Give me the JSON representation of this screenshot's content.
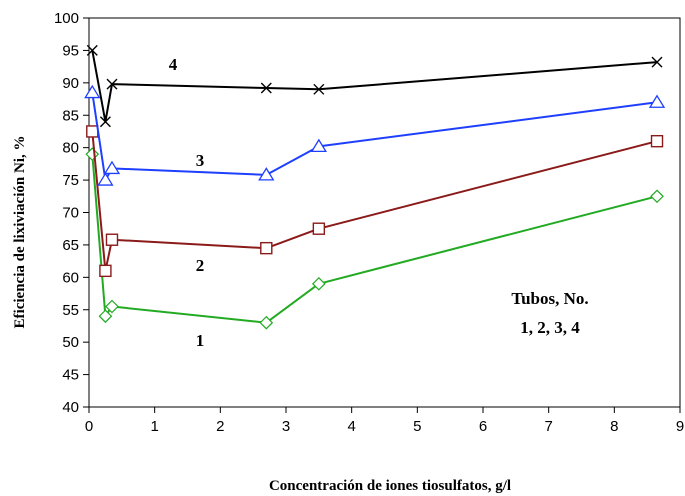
{
  "chart_data": {
    "type": "line",
    "xlabel": "Concentración de iones tiosulfatos, g/l",
    "ylabel": "Eficiencia de lixiviación Ni, %",
    "xlim": [
      0,
      9
    ],
    "ylim": [
      40,
      100
    ],
    "x_ticks": [
      "0",
      "1",
      "2",
      "3",
      "4",
      "5",
      "6",
      "7",
      "8",
      "9"
    ],
    "y_ticks": [
      "40",
      "45",
      "50",
      "55",
      "60",
      "65",
      "70",
      "75",
      "80",
      "85",
      "90",
      "95",
      "100"
    ],
    "grid": false,
    "legend_text": [
      "Tubos, No.",
      "1, 2, 3, 4"
    ],
    "series": [
      {
        "name": "1",
        "color": "#22aa22",
        "marker": "diamond",
        "x": [
          0.05,
          0.25,
          0.35,
          2.7,
          3.5,
          8.65
        ],
        "y": [
          79.0,
          54.0,
          55.5,
          53.0,
          59.0,
          72.5
        ]
      },
      {
        "name": "2",
        "color": "#8b1a1a",
        "marker": "square",
        "x": [
          0.05,
          0.25,
          0.35,
          2.7,
          3.5,
          8.65
        ],
        "y": [
          82.5,
          61.0,
          65.8,
          64.5,
          67.5,
          81.0
        ]
      },
      {
        "name": "3",
        "color": "#1f3fff",
        "marker": "triangle",
        "x": [
          0.05,
          0.25,
          0.35,
          2.7,
          3.5,
          8.65
        ],
        "y": [
          88.5,
          75.0,
          76.8,
          75.8,
          80.2,
          87.0
        ]
      },
      {
        "name": "4",
        "color": "#000000",
        "marker": "x",
        "x": [
          0.05,
          0.25,
          0.35,
          2.7,
          3.5,
          8.65
        ],
        "y": [
          95.0,
          84.0,
          89.8,
          89.2,
          89.0,
          93.2
        ]
      }
    ]
  }
}
